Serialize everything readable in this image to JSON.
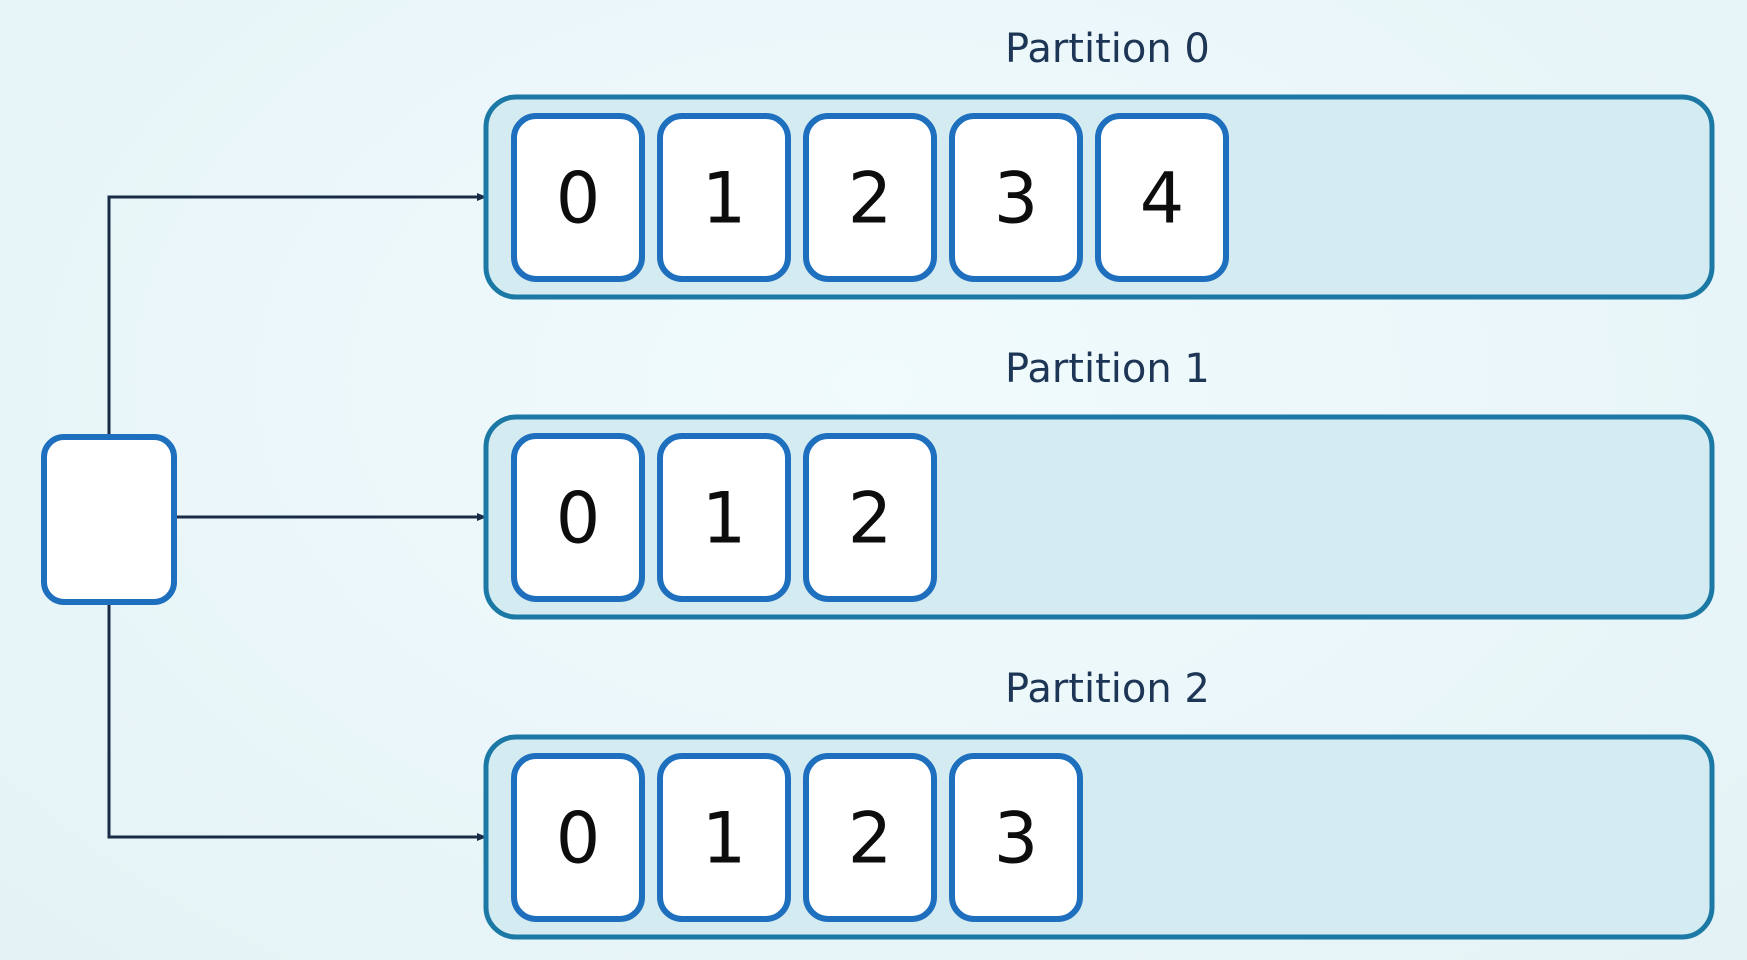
{
  "colors": {
    "background": "#e9f6f9",
    "partition_fill": "#d4ebf1",
    "partition_stroke": "#1c79a6",
    "cell_fill": "#ffffff",
    "cell_stroke": "#1f6fbf",
    "producer_stroke": "#1f6fbf",
    "arrow": "#1a2b45",
    "title_text": "#1e3656",
    "offset_text": "#0d0d0d"
  },
  "producer": {
    "icon": "blank-producer-box"
  },
  "partitions": [
    {
      "title": "Partition 0",
      "offsets": [
        "0",
        "1",
        "2",
        "3",
        "4"
      ]
    },
    {
      "title": "Partition 1",
      "offsets": [
        "0",
        "1",
        "2"
      ]
    },
    {
      "title": "Partition 2",
      "offsets": [
        "0",
        "1",
        "2",
        "3"
      ]
    }
  ]
}
